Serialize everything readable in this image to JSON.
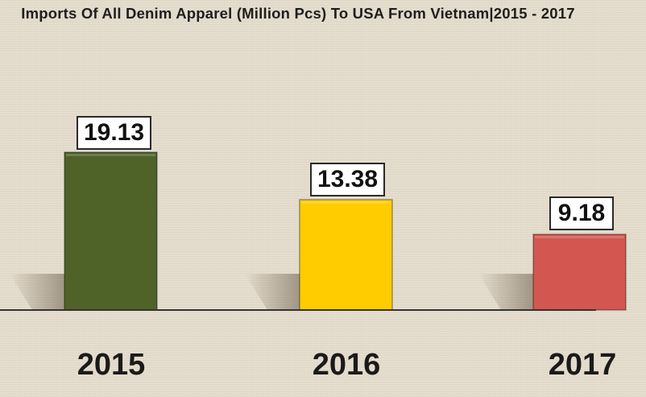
{
  "chart_data": {
    "type": "bar",
    "title": "Imports Of All Denim Apparel (Million Pcs) To USA From Vietnam|2015 - 2017",
    "categories": [
      "2015",
      "2016",
      "2017"
    ],
    "values": [
      19.13,
      13.38,
      9.18
    ],
    "value_labels": [
      "19.13",
      "13.38",
      "9.18"
    ],
    "ylim": [
      0,
      19.13
    ],
    "colors": [
      "#4f6228",
      "#ffcc00",
      "#d35650"
    ],
    "xlabel": "",
    "ylabel": "",
    "grid": false,
    "legend": "none"
  }
}
